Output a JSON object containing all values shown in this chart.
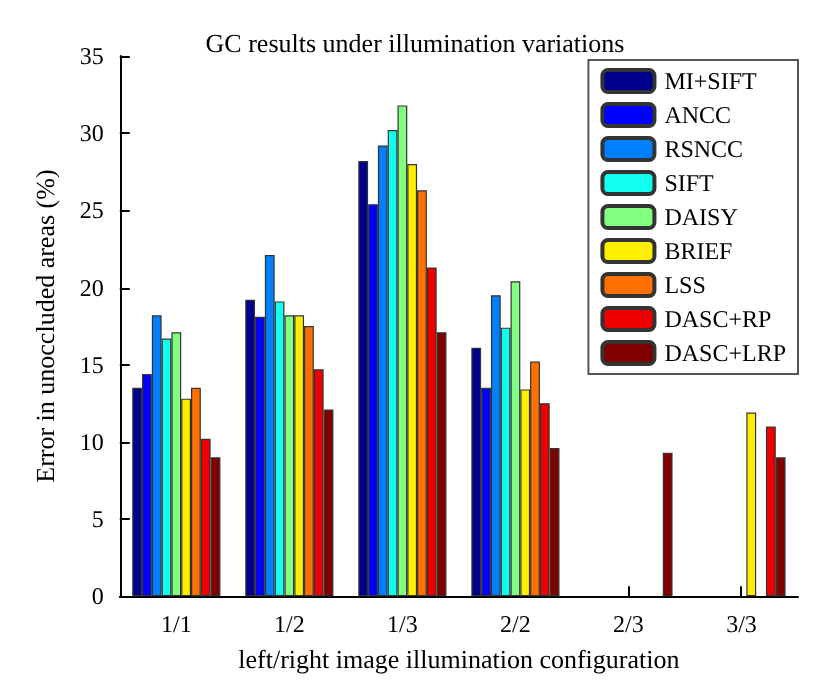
{
  "chart_data": {
    "type": "bar",
    "title": "GC results under illumination variations",
    "xlabel": "left/right image illumination configuration",
    "ylabel": "Error in unoccluded areas (%)",
    "categories": [
      "1/1",
      "1/2",
      "1/3",
      "2/2",
      "2/3",
      "3/3"
    ],
    "series": [
      {
        "name": "MI+SIFT",
        "color": "#00008f",
        "values": [
          13.5,
          19.2,
          28.2,
          16.1,
          null,
          null
        ]
      },
      {
        "name": "ANCC",
        "color": "#0000ff",
        "values": [
          14.4,
          18.1,
          25.4,
          13.5,
          null,
          null
        ]
      },
      {
        "name": "RSNCC",
        "color": "#0080ff",
        "values": [
          18.2,
          22.1,
          29.2,
          19.5,
          null,
          null
        ]
      },
      {
        "name": "SIFT",
        "color": "#10ffef",
        "values": [
          16.7,
          19.1,
          30.2,
          17.4,
          null,
          null
        ]
      },
      {
        "name": "DAISY",
        "color": "#80ff80",
        "values": [
          17.1,
          18.2,
          31.8,
          20.4,
          null,
          null
        ]
      },
      {
        "name": "BRIEF",
        "color": "#ffef00",
        "values": [
          12.8,
          18.2,
          28.0,
          13.4,
          null,
          11.9
        ]
      },
      {
        "name": "LSS",
        "color": "#ff7000",
        "values": [
          13.5,
          17.5,
          26.3,
          15.2,
          null,
          null
        ]
      },
      {
        "name": "DASC+RP",
        "color": "#ef0000",
        "values": [
          10.2,
          14.7,
          21.3,
          12.5,
          null,
          11.0
        ]
      },
      {
        "name": "DASC+LRP",
        "color": "#800000",
        "values": [
          9.0,
          12.1,
          17.1,
          9.6,
          9.3,
          9.0
        ]
      }
    ],
    "ylim": [
      0,
      35
    ],
    "yticks": [
      0,
      5,
      10,
      15,
      20,
      25,
      30,
      35
    ],
    "grid": false,
    "legend": "top right"
  }
}
